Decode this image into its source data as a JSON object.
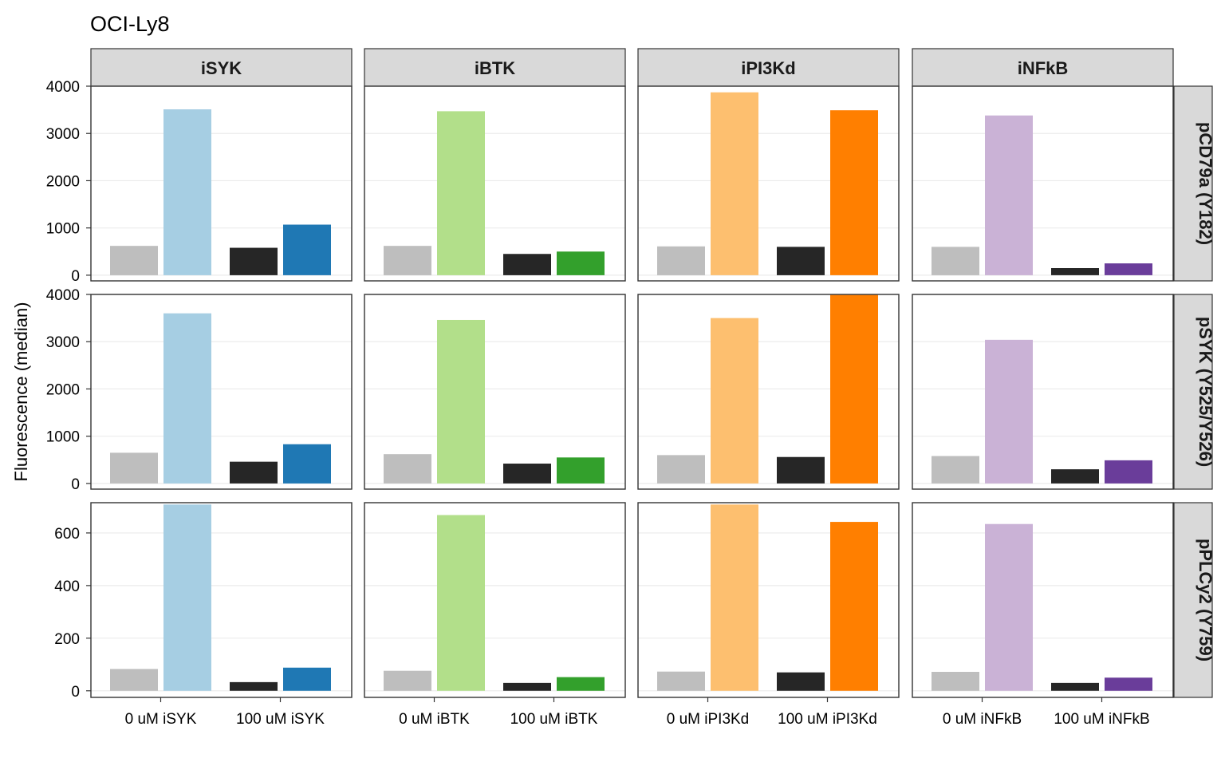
{
  "chart_data": {
    "type": "bar",
    "title": "OCI-Ly8",
    "ylabel": "Fluorescence (median)",
    "xlabel": "",
    "facet_columns": [
      {
        "label": "iSYK",
        "categories": [
          "0 uM iSYK",
          "100 uM iSYK"
        ],
        "colors": [
          "#bebebe",
          "#a6cee3",
          "#262626",
          "#1f78b4"
        ]
      },
      {
        "label": "iBTK",
        "categories": [
          "0 uM iBTK",
          "100 uM iBTK"
        ],
        "colors": [
          "#bebebe",
          "#b2df8a",
          "#262626",
          "#33a02c"
        ]
      },
      {
        "label": "iPI3Kd",
        "categories": [
          "0 uM iPI3Kd",
          "100 uM iPI3Kd"
        ],
        "colors": [
          "#bebebe",
          "#fdbf6f",
          "#262626",
          "#ff7f00"
        ]
      },
      {
        "label": "iNFkB",
        "categories": [
          "0 uM iNFkB",
          "100 uM iNFkB"
        ],
        "colors": [
          "#bebebe",
          "#cab2d6",
          "#262626",
          "#6a3d9a"
        ]
      }
    ],
    "facet_rows": [
      {
        "label": "pCD79a (Y182)",
        "ylim": [
          -120,
          4000
        ],
        "ticks": [
          0,
          1000,
          2000,
          3000,
          4000
        ],
        "values": [
          [
            620,
            3510,
            580,
            1070
          ],
          [
            620,
            3470,
            450,
            500
          ],
          [
            610,
            3870,
            600,
            3490
          ],
          [
            600,
            3380,
            150,
            250
          ]
        ]
      },
      {
        "label": "pSYK (Y525/Y526)",
        "ylim": [
          -120,
          4000
        ],
        "ticks": [
          0,
          1000,
          2000,
          3000,
          4000
        ],
        "values": [
          [
            650,
            3600,
            460,
            830
          ],
          [
            620,
            3460,
            420,
            550
          ],
          [
            600,
            3500,
            560,
            3990
          ],
          [
            580,
            3040,
            300,
            490
          ]
        ]
      },
      {
        "label": "pPLCy2 (Y759)",
        "ylim": [
          -25,
          715
        ],
        "ticks": [
          0,
          200,
          400,
          600
        ],
        "values": [
          [
            83,
            708,
            33,
            88
          ],
          [
            76,
            668,
            30,
            52
          ],
          [
            73,
            708,
            70,
            642
          ],
          [
            72,
            634,
            30,
            50
          ]
        ]
      }
    ],
    "grid": true,
    "legend": "none"
  }
}
